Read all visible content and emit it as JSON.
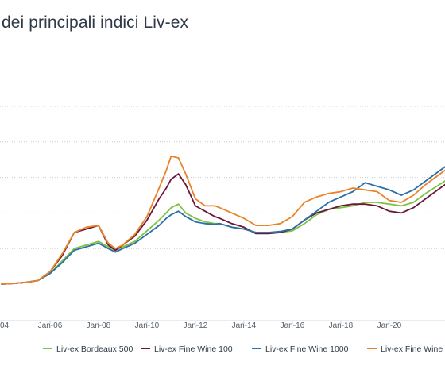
{
  "chart_data": {
    "type": "line",
    "title": "dei principali indici Liv-ex",
    "xlabel": "",
    "ylabel": "",
    "x_tick_labels": [
      "04",
      "Jan-06",
      "Jan-08",
      "Jan-10",
      "Jan-12",
      "Jan-14",
      "Jan-16",
      "Jan-18",
      "Jan-20"
    ],
    "x_tick_positions": [
      2004,
      2006,
      2008,
      2010,
      2012,
      2014,
      2016,
      2018,
      2020
    ],
    "xlim": [
      2004,
      2022.3
    ],
    "ylim": [
      0,
      5
    ],
    "y_gridlines": [
      1,
      2,
      3,
      4,
      5
    ],
    "grid": true,
    "legend_position": "bottom",
    "colors": {
      "bordeaux500": "#7cc243",
      "fine100": "#6b1737",
      "fine1000": "#2c6fa8",
      "finewine": "#e8832a"
    },
    "series": [
      {
        "name": "Liv-ex Bordeaux 500",
        "key": "bordeaux500",
        "x": [
          2004,
          2004.5,
          2005,
          2005.5,
          2006,
          2006.5,
          2007,
          2007.5,
          2008,
          2008.4,
          2008.7,
          2009,
          2009.5,
          2010,
          2010.5,
          2010.8,
          2011,
          2011.3,
          2011.6,
          2012,
          2012.4,
          2012.8,
          2013,
          2013.5,
          2014,
          2014.5,
          2015,
          2015.5,
          2016,
          2016.5,
          2017,
          2017.5,
          2018,
          2018.5,
          2019,
          2019.5,
          2020,
          2020.5,
          2021,
          2021.5,
          2022.3
        ],
        "values": [
          0.0,
          0.02,
          0.05,
          0.1,
          0.3,
          0.65,
          1.0,
          1.1,
          1.2,
          1.05,
          0.95,
          1.05,
          1.2,
          1.5,
          1.8,
          2.0,
          2.15,
          2.25,
          2.0,
          1.85,
          1.75,
          1.7,
          1.7,
          1.6,
          1.55,
          1.45,
          1.45,
          1.45,
          1.5,
          1.7,
          1.95,
          2.1,
          2.15,
          2.2,
          2.3,
          2.3,
          2.25,
          2.2,
          2.3,
          2.55,
          2.9
        ]
      },
      {
        "name": "Liv-ex Fine Wine 100",
        "key": "fine100",
        "x": [
          2004,
          2004.5,
          2005,
          2005.5,
          2006,
          2006.5,
          2007,
          2007.5,
          2008,
          2008.4,
          2008.7,
          2009,
          2009.5,
          2010,
          2010.5,
          2010.8,
          2011,
          2011.3,
          2011.6,
          2012,
          2012.4,
          2012.8,
          2013,
          2013.5,
          2014,
          2014.5,
          2015,
          2015.5,
          2016,
          2016.5,
          2017,
          2017.5,
          2018,
          2018.5,
          2019,
          2019.5,
          2020,
          2020.5,
          2021,
          2021.5,
          2022.3
        ],
        "values": [
          0.0,
          0.02,
          0.05,
          0.1,
          0.35,
          0.8,
          1.45,
          1.55,
          1.65,
          1.1,
          0.95,
          1.1,
          1.35,
          1.8,
          2.4,
          2.7,
          2.95,
          3.1,
          2.8,
          2.2,
          2.05,
          1.9,
          1.85,
          1.7,
          1.6,
          1.42,
          1.42,
          1.45,
          1.55,
          1.8,
          2.0,
          2.1,
          2.2,
          2.25,
          2.25,
          2.2,
          2.05,
          2.0,
          2.15,
          2.4,
          2.8
        ]
      },
      {
        "name": "Liv-ex Fine Wine 1000",
        "key": "fine1000",
        "x": [
          2004,
          2004.5,
          2005,
          2005.5,
          2006,
          2006.5,
          2007,
          2007.5,
          2008,
          2008.4,
          2008.7,
          2009,
          2009.5,
          2010,
          2010.5,
          2010.8,
          2011,
          2011.3,
          2011.6,
          2012,
          2012.4,
          2012.8,
          2013,
          2013.5,
          2014,
          2014.5,
          2015,
          2015.5,
          2016,
          2016.5,
          2017,
          2017.5,
          2018,
          2018.5,
          2019,
          2019.5,
          2020,
          2020.5,
          2021,
          2021.5,
          2022.3
        ],
        "values": [
          0.0,
          0.02,
          0.05,
          0.1,
          0.3,
          0.6,
          0.95,
          1.05,
          1.15,
          1.0,
          0.9,
          1.0,
          1.15,
          1.4,
          1.65,
          1.85,
          1.95,
          2.05,
          1.9,
          1.75,
          1.7,
          1.68,
          1.7,
          1.6,
          1.55,
          1.45,
          1.45,
          1.48,
          1.55,
          1.8,
          2.05,
          2.3,
          2.45,
          2.6,
          2.85,
          2.75,
          2.65,
          2.5,
          2.65,
          2.9,
          3.3
        ]
      },
      {
        "name": "Liv-ex Fine Wine",
        "key": "finewine",
        "x": [
          2004,
          2004.5,
          2005,
          2005.5,
          2006,
          2006.5,
          2007,
          2007.5,
          2008,
          2008.4,
          2008.7,
          2009,
          2009.5,
          2010,
          2010.5,
          2010.8,
          2011,
          2011.3,
          2011.6,
          2012,
          2012.4,
          2012.8,
          2013,
          2013.5,
          2014,
          2014.5,
          2015,
          2015.5,
          2016,
          2016.5,
          2017,
          2017.5,
          2018,
          2018.5,
          2019,
          2019.5,
          2020,
          2020.5,
          2021,
          2021.5,
          2022.3
        ],
        "values": [
          0.0,
          0.02,
          0.05,
          0.1,
          0.35,
          0.85,
          1.45,
          1.6,
          1.65,
          1.15,
          1.0,
          1.1,
          1.4,
          1.9,
          2.7,
          3.2,
          3.6,
          3.55,
          3.1,
          2.4,
          2.2,
          2.2,
          2.15,
          2.0,
          1.85,
          1.65,
          1.65,
          1.7,
          1.9,
          2.3,
          2.45,
          2.55,
          2.6,
          2.7,
          2.65,
          2.6,
          2.35,
          2.3,
          2.5,
          2.8,
          3.2
        ]
      }
    ]
  }
}
